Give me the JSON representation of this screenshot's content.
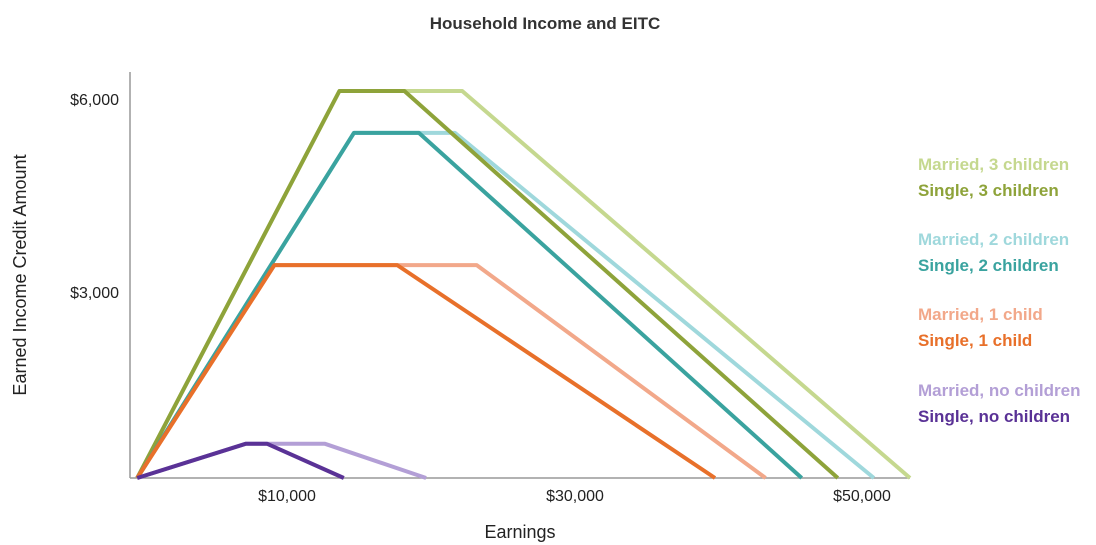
{
  "chart_data": {
    "type": "line",
    "title": "Household Income and EITC",
    "xlabel": "Earnings",
    "ylabel": "Earned Income Credit Amount",
    "xlim": [
      -1000,
      53000
    ],
    "ylim": [
      0,
      6000
    ],
    "x_ticks": [
      {
        "value": 10000,
        "label": "$10,000"
      },
      {
        "value": 30000,
        "label": "$30,000"
      },
      {
        "value": 50000,
        "label": "$50,000"
      }
    ],
    "y_ticks": [
      {
        "value": 3000,
        "label": "$3,000"
      },
      {
        "value": 6000,
        "label": "$6,000"
      }
    ],
    "grid": false,
    "legend_position": "right",
    "series": [
      {
        "name": "Married, 3 children",
        "color": "#c5d88f",
        "points": [
          [
            -500,
            0
          ],
          [
            13500,
            6000
          ],
          [
            22000,
            6000
          ],
          [
            53000,
            0
          ]
        ]
      },
      {
        "name": "Single, 3 children",
        "color": "#8ea33a",
        "points": [
          [
            -500,
            0
          ],
          [
            13500,
            6000
          ],
          [
            18000,
            6000
          ],
          [
            48000,
            0
          ]
        ]
      },
      {
        "name": "Married, 2 children",
        "color": "#9fd8dc",
        "points": [
          [
            -500,
            0
          ],
          [
            14500,
            5350
          ],
          [
            21500,
            5350
          ],
          [
            50500,
            0
          ]
        ]
      },
      {
        "name": "Single, 2 children",
        "color": "#3aa39f",
        "points": [
          [
            -500,
            0
          ],
          [
            14500,
            5350
          ],
          [
            19000,
            5350
          ],
          [
            45500,
            0
          ]
        ]
      },
      {
        "name": "Married, 1 child",
        "color": "#f2a88a",
        "points": [
          [
            -500,
            0
          ],
          [
            9000,
            3300
          ],
          [
            23000,
            3300
          ],
          [
            43000,
            0
          ]
        ]
      },
      {
        "name": "Single, 1 child",
        "color": "#e8702a",
        "points": [
          [
            -500,
            0
          ],
          [
            9000,
            3300
          ],
          [
            17500,
            3300
          ],
          [
            39500,
            0
          ]
        ]
      },
      {
        "name": "Married, no children",
        "color": "#b39fd6",
        "points": [
          [
            -500,
            0
          ],
          [
            7000,
            530
          ],
          [
            12500,
            530
          ],
          [
            19500,
            0
          ]
        ]
      },
      {
        "name": "Single, no children",
        "color": "#5a3296",
        "points": [
          [
            -500,
            0
          ],
          [
            7000,
            530
          ],
          [
            8500,
            530
          ],
          [
            13800,
            0
          ]
        ]
      }
    ]
  }
}
